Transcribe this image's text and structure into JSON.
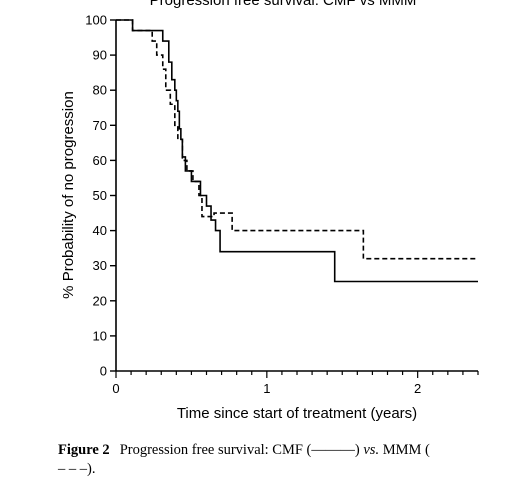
{
  "chart_data": {
    "type": "line",
    "title": "Progression free survival: CMF vs MMM",
    "xlabel": "Time since start of treatment (years)",
    "ylabel": "% Probability of no progression",
    "xlim": [
      0,
      2.4
    ],
    "ylim": [
      0,
      100
    ],
    "x_ticks": [
      0,
      1,
      2
    ],
    "y_ticks": [
      0,
      10,
      20,
      30,
      40,
      50,
      60,
      70,
      80,
      90,
      100
    ],
    "grid": false,
    "legend": "none",
    "series": [
      {
        "style": "solid",
        "color": "#000000",
        "points": [
          [
            0,
            100
          ],
          [
            0.11,
            100
          ],
          [
            0.11,
            97
          ],
          [
            0.31,
            97
          ],
          [
            0.31,
            94
          ],
          [
            0.35,
            94
          ],
          [
            0.35,
            88
          ],
          [
            0.37,
            88
          ],
          [
            0.37,
            83
          ],
          [
            0.39,
            83
          ],
          [
            0.39,
            80
          ],
          [
            0.4,
            80
          ],
          [
            0.4,
            77
          ],
          [
            0.41,
            77
          ],
          [
            0.41,
            74
          ],
          [
            0.42,
            74
          ],
          [
            0.42,
            69
          ],
          [
            0.43,
            69
          ],
          [
            0.43,
            66
          ],
          [
            0.44,
            66
          ],
          [
            0.44,
            61
          ],
          [
            0.46,
            61
          ],
          [
            0.46,
            57
          ],
          [
            0.5,
            57
          ],
          [
            0.5,
            54
          ],
          [
            0.56,
            54
          ],
          [
            0.56,
            50
          ],
          [
            0.6,
            50
          ],
          [
            0.6,
            47
          ],
          [
            0.63,
            47
          ],
          [
            0.63,
            43
          ],
          [
            0.66,
            43
          ],
          [
            0.66,
            40
          ],
          [
            0.69,
            40
          ],
          [
            0.69,
            34
          ],
          [
            1.45,
            34
          ],
          [
            1.45,
            25.5
          ],
          [
            2.4,
            25.5
          ]
        ]
      },
      {
        "style": "dashed",
        "color": "#000000",
        "points": [
          [
            0,
            100
          ],
          [
            0.11,
            100
          ],
          [
            0.11,
            97
          ],
          [
            0.24,
            97
          ],
          [
            0.24,
            94
          ],
          [
            0.27,
            94
          ],
          [
            0.27,
            90
          ],
          [
            0.31,
            90
          ],
          [
            0.31,
            86
          ],
          [
            0.33,
            86
          ],
          [
            0.33,
            80
          ],
          [
            0.36,
            80
          ],
          [
            0.36,
            76
          ],
          [
            0.39,
            76
          ],
          [
            0.39,
            70
          ],
          [
            0.41,
            70
          ],
          [
            0.41,
            66
          ],
          [
            0.44,
            66
          ],
          [
            0.44,
            60
          ],
          [
            0.47,
            60
          ],
          [
            0.47,
            57
          ],
          [
            0.51,
            57
          ],
          [
            0.51,
            54
          ],
          [
            0.55,
            54
          ],
          [
            0.55,
            50
          ],
          [
            0.57,
            50
          ],
          [
            0.57,
            44
          ],
          [
            0.65,
            44
          ],
          [
            0.65,
            45
          ],
          [
            0.77,
            45
          ],
          [
            0.77,
            40
          ],
          [
            1.64,
            40
          ],
          [
            1.64,
            32
          ],
          [
            2.4,
            32
          ]
        ]
      }
    ]
  },
  "caption": {
    "figure_label": "Figure 2",
    "text_before": "Progression free survival: CMF (",
    "solid_sample": "———",
    "text_middle": ") ",
    "vs": "vs.",
    "text_after": " MMM (",
    "dashed_sample": "– – –",
    "text_end": ")."
  }
}
